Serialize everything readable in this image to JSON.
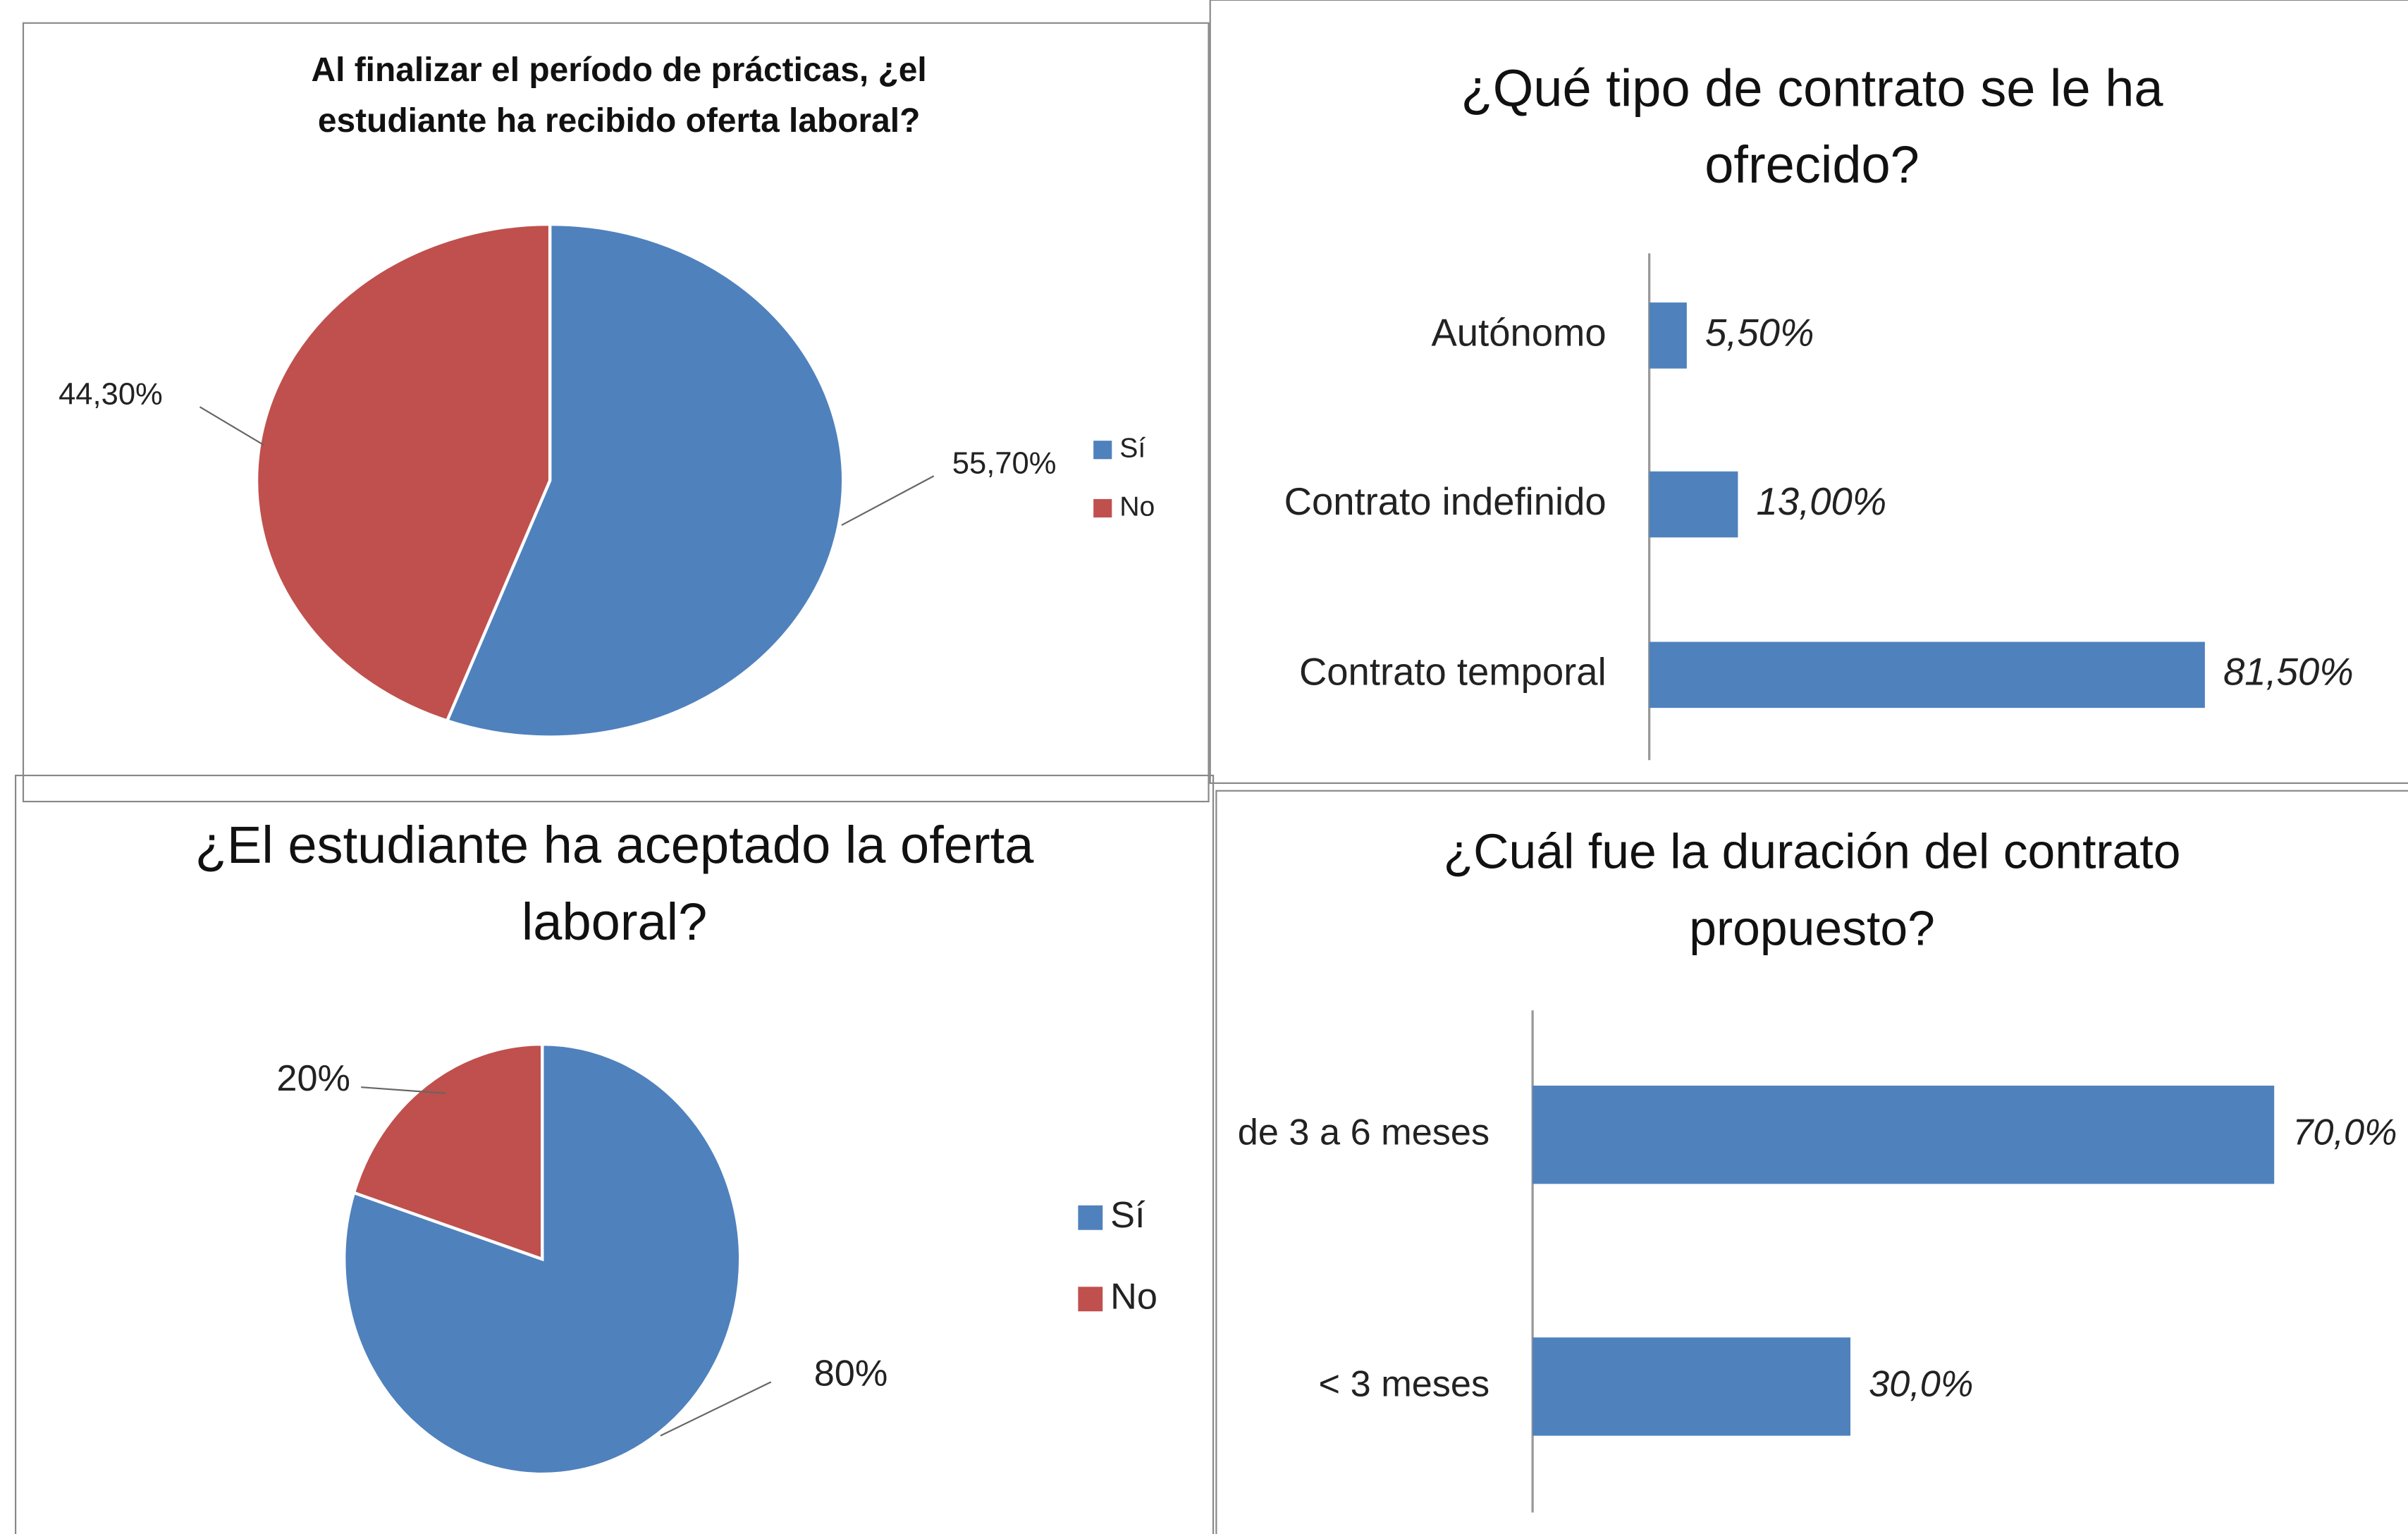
{
  "chart_data": [
    {
      "type": "pie",
      "title": [
        "Al finalizar el período de prácticas, ¿el",
        "estudiante ha recibido oferta laboral?"
      ],
      "categories": [
        "Sí",
        "No"
      ],
      "values": [
        55.7,
        44.3
      ],
      "value_labels": [
        "55,70%",
        "44,30%"
      ],
      "colors": [
        "#4f81bd",
        "#c0504d"
      ],
      "legend": "right"
    },
    {
      "type": "hbar",
      "title": [
        "¿Qué tipo de contrato se le ha",
        "ofrecido?"
      ],
      "categories": [
        "Autónomo",
        "Contrato indefinido",
        "Contrato temporal"
      ],
      "values": [
        5.5,
        13,
        81.5
      ],
      "value_labels": [
        "5,50%",
        "13,00%",
        "81,50%"
      ],
      "color": "#4f81bd"
    },
    {
      "type": "pie",
      "title": [
        "¿El estudiante ha aceptado la oferta",
        "laboral?"
      ],
      "categories": [
        "Sí",
        "No"
      ],
      "values": [
        80,
        20
      ],
      "value_labels": [
        "80%",
        "20%"
      ],
      "colors": [
        "#4f81bd",
        "#c0504d"
      ],
      "legend": "right"
    },
    {
      "type": "hbar",
      "title": [
        "¿Cuál fue la duración del contrato",
        "propuesto?"
      ],
      "categories": [
        "de 3 a 6 meses",
        "< 3 meses"
      ],
      "values": [
        70,
        30
      ],
      "value_labels": [
        "70,0%",
        "30,0%"
      ],
      "color": "#4f81bd"
    }
  ]
}
